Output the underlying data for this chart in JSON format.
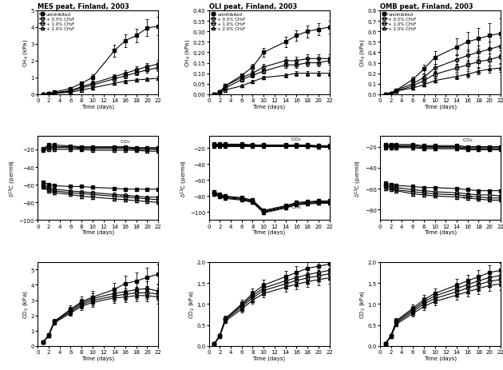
{
  "titles": [
    "MES peat, Finland, 2003",
    "OLI peat, Finland, 2003",
    "OMB peat, Finland, 2003"
  ],
  "time": [
    1,
    2,
    3,
    6,
    8,
    10,
    14,
    16,
    18,
    20,
    22
  ],
  "legend_labels": [
    "uninhibited",
    "+ 0.5% CH₃F",
    "+ 1.0% CH₃F",
    "+ 2.0% CH₃F"
  ],
  "ch4_MES": {
    "uninhibited": [
      0.0,
      0.05,
      0.12,
      0.35,
      0.65,
      1.0,
      2.6,
      3.2,
      3.5,
      3.95,
      4.05
    ],
    "p05": [
      0.0,
      0.04,
      0.08,
      0.22,
      0.45,
      0.65,
      1.05,
      1.25,
      1.45,
      1.65,
      1.8
    ],
    "p10": [
      0.0,
      0.03,
      0.07,
      0.18,
      0.38,
      0.55,
      0.92,
      1.1,
      1.28,
      1.45,
      1.58
    ],
    "p20": [
      0.0,
      0.02,
      0.05,
      0.12,
      0.25,
      0.38,
      0.65,
      0.78,
      0.85,
      0.9,
      0.95
    ],
    "uninhibited_err": [
      0.0,
      0.02,
      0.03,
      0.06,
      0.12,
      0.18,
      0.35,
      0.38,
      0.42,
      0.5,
      0.55
    ],
    "p05_err": [
      0.0,
      0.01,
      0.02,
      0.04,
      0.07,
      0.09,
      0.14,
      0.17,
      0.19,
      0.22,
      0.24
    ],
    "p10_err": [
      0.0,
      0.01,
      0.015,
      0.03,
      0.06,
      0.08,
      0.12,
      0.14,
      0.16,
      0.18,
      0.2
    ],
    "p20_err": [
      0.0,
      0.01,
      0.01,
      0.02,
      0.04,
      0.05,
      0.08,
      0.09,
      0.1,
      0.11,
      0.12
    ],
    "ylim": [
      0,
      5
    ],
    "yticks": [
      0,
      1,
      2,
      3,
      4,
      5
    ]
  },
  "ch4_OLI": {
    "uninhibited": [
      0.0,
      0.01,
      0.04,
      0.09,
      0.13,
      0.2,
      0.25,
      0.28,
      0.3,
      0.31,
      0.32
    ],
    "p05": [
      0.0,
      0.01,
      0.04,
      0.08,
      0.1,
      0.13,
      0.16,
      0.16,
      0.17,
      0.17,
      0.17
    ],
    "p10": [
      0.0,
      0.01,
      0.03,
      0.07,
      0.09,
      0.11,
      0.14,
      0.14,
      0.15,
      0.15,
      0.16
    ],
    "p20": [
      0.0,
      0.01,
      0.02,
      0.04,
      0.06,
      0.08,
      0.09,
      0.1,
      0.1,
      0.1,
      0.1
    ],
    "uninhibited_err": [
      0.0,
      0.003,
      0.005,
      0.01,
      0.015,
      0.02,
      0.025,
      0.025,
      0.028,
      0.03,
      0.03
    ],
    "p05_err": [
      0.0,
      0.003,
      0.005,
      0.009,
      0.012,
      0.015,
      0.018,
      0.019,
      0.02,
      0.021,
      0.022
    ],
    "p10_err": [
      0.0,
      0.002,
      0.004,
      0.007,
      0.01,
      0.012,
      0.015,
      0.016,
      0.017,
      0.018,
      0.019
    ],
    "p20_err": [
      0.0,
      0.002,
      0.003,
      0.005,
      0.007,
      0.009,
      0.01,
      0.011,
      0.012,
      0.012,
      0.013
    ],
    "ylim": [
      0,
      0.4
    ],
    "yticks": [
      0.0,
      0.05,
      0.1,
      0.15,
      0.2,
      0.25,
      0.3,
      0.35,
      0.4
    ]
  },
  "ch4_OMB": {
    "uninhibited": [
      0.0,
      0.01,
      0.04,
      0.14,
      0.24,
      0.35,
      0.45,
      0.5,
      0.53,
      0.56,
      0.58
    ],
    "p05": [
      0.0,
      0.01,
      0.04,
      0.1,
      0.16,
      0.25,
      0.33,
      0.37,
      0.4,
      0.43,
      0.46
    ],
    "p10": [
      0.0,
      0.01,
      0.03,
      0.08,
      0.13,
      0.19,
      0.25,
      0.28,
      0.31,
      0.33,
      0.36
    ],
    "p20": [
      0.0,
      0.01,
      0.03,
      0.06,
      0.09,
      0.13,
      0.17,
      0.19,
      0.22,
      0.24,
      0.25
    ],
    "uninhibited_err": [
      0.0,
      0.005,
      0.01,
      0.025,
      0.04,
      0.06,
      0.08,
      0.09,
      0.1,
      0.12,
      0.14
    ],
    "p05_err": [
      0.0,
      0.004,
      0.008,
      0.018,
      0.028,
      0.04,
      0.05,
      0.058,
      0.065,
      0.07,
      0.08
    ],
    "p10_err": [
      0.0,
      0.003,
      0.006,
      0.013,
      0.02,
      0.03,
      0.038,
      0.044,
      0.05,
      0.055,
      0.06
    ],
    "p20_err": [
      0.0,
      0.003,
      0.005,
      0.009,
      0.014,
      0.02,
      0.026,
      0.03,
      0.034,
      0.037,
      0.04
    ],
    "ylim": [
      0,
      0.8
    ],
    "yticks": [
      0.0,
      0.1,
      0.2,
      0.3,
      0.4,
      0.5,
      0.6,
      0.7,
      0.8
    ]
  },
  "d13c_MES": {
    "CO2_uninhibited": [
      -19,
      -15,
      -15,
      -16,
      -17,
      -17,
      -17,
      -17,
      -18,
      -18,
      -18
    ],
    "CO2_p05": [
      -20,
      -17,
      -17,
      -17,
      -18,
      -18,
      -18,
      -18,
      -19,
      -19,
      -19
    ],
    "CO2_p10": [
      -20,
      -18,
      -18,
      -18,
      -19,
      -19,
      -19,
      -19,
      -20,
      -20,
      -20
    ],
    "CO2_p20": [
      -21,
      -20,
      -20,
      -20,
      -20,
      -21,
      -21,
      -21,
      -21,
      -22,
      -22
    ],
    "CH4_uninhibited": [
      -57,
      -60,
      -61,
      -62,
      -62,
      -63,
      -64,
      -65,
      -65,
      -65,
      -65
    ],
    "CH4_p05": [
      -60,
      -63,
      -65,
      -67,
      -68,
      -69,
      -71,
      -72,
      -73,
      -74,
      -74
    ],
    "CH4_p10": [
      -62,
      -65,
      -67,
      -69,
      -70,
      -71,
      -73,
      -74,
      -75,
      -76,
      -77
    ],
    "CH4_p20": [
      -63,
      -67,
      -69,
      -71,
      -73,
      -74,
      -76,
      -77,
      -78,
      -79,
      -80
    ],
    "ylim": [
      -100,
      -5
    ],
    "yticks": [
      -100,
      -80,
      -60,
      -40,
      -20
    ]
  },
  "d13c_OLI": {
    "CO2_uninhibited": [
      -15,
      -15,
      -15,
      -15,
      -16,
      -16,
      -16,
      -16,
      -16,
      -17,
      -17
    ],
    "CO2_p05": [
      -16,
      -16,
      -16,
      -16,
      -16,
      -17,
      -17,
      -17,
      -17,
      -17,
      -17
    ],
    "CO2_p10": [
      -17,
      -17,
      -17,
      -17,
      -17,
      -17,
      -17,
      -17,
      -18,
      -18,
      -18
    ],
    "CO2_p20": [
      -18,
      -18,
      -18,
      -18,
      -18,
      -18,
      -18,
      -18,
      -18,
      -19,
      -19
    ],
    "CH4_uninhibited": [
      -75,
      -78,
      -80,
      -82,
      -85,
      -98,
      -92,
      -88,
      -87,
      -86,
      -86
    ],
    "CH4_p05": [
      -76,
      -79,
      -81,
      -83,
      -86,
      -99,
      -93,
      -89,
      -88,
      -87,
      -87
    ],
    "CH4_p10": [
      -77,
      -80,
      -82,
      -84,
      -87,
      -100,
      -94,
      -90,
      -89,
      -88,
      -88
    ],
    "CH4_p20": [
      -78,
      -81,
      -83,
      -85,
      -88,
      -101,
      -95,
      -91,
      -90,
      -89,
      -89
    ],
    "ylim": [
      -110,
      -5
    ],
    "yticks": [
      -100,
      -80,
      -60,
      -40,
      -20
    ]
  },
  "d13c_OMB": {
    "CO2_uninhibited": [
      -18,
      -18,
      -18,
      -18,
      -19,
      -19,
      -19,
      -20,
      -20,
      -20,
      -20
    ],
    "CO2_p05": [
      -19,
      -19,
      -19,
      -19,
      -20,
      -20,
      -20,
      -21,
      -21,
      -21,
      -21
    ],
    "CO2_p10": [
      -20,
      -20,
      -20,
      -20,
      -21,
      -21,
      -21,
      -22,
      -22,
      -22,
      -22
    ],
    "CO2_p20": [
      -21,
      -21,
      -21,
      -21,
      -22,
      -22,
      -22,
      -23,
      -23,
      -23,
      -23
    ],
    "CH4_uninhibited": [
      -55,
      -56,
      -57,
      -58,
      -59,
      -59,
      -60,
      -61,
      -62,
      -62,
      -62
    ],
    "CH4_p05": [
      -57,
      -58,
      -59,
      -61,
      -62,
      -63,
      -64,
      -65,
      -66,
      -66,
      -67
    ],
    "CH4_p10": [
      -58,
      -59,
      -61,
      -63,
      -64,
      -65,
      -66,
      -67,
      -68,
      -69,
      -69
    ],
    "CH4_p20": [
      -60,
      -61,
      -62,
      -65,
      -66,
      -67,
      -68,
      -69,
      -70,
      -71,
      -71
    ],
    "ylim": [
      -90,
      -10
    ],
    "yticks": [
      -80,
      -60,
      -40,
      -20
    ]
  },
  "co2_MES": {
    "uninhibited": [
      0.25,
      0.7,
      1.6,
      2.4,
      2.9,
      3.2,
      3.7,
      4.1,
      4.25,
      4.5,
      4.7
    ],
    "p05": [
      0.25,
      0.7,
      1.6,
      2.35,
      2.8,
      3.1,
      3.45,
      3.55,
      3.7,
      3.75,
      3.6
    ],
    "p10": [
      0.25,
      0.68,
      1.55,
      2.25,
      2.7,
      2.98,
      3.28,
      3.38,
      3.48,
      3.48,
      3.4
    ],
    "p20": [
      0.25,
      0.65,
      1.5,
      2.15,
      2.6,
      2.85,
      3.15,
      3.2,
      3.3,
      3.3,
      3.2
    ],
    "uninhibited_err": [
      0.02,
      0.08,
      0.15,
      0.25,
      0.35,
      0.4,
      0.45,
      0.5,
      0.55,
      0.6,
      0.65
    ],
    "p05_err": [
      0.02,
      0.07,
      0.13,
      0.22,
      0.3,
      0.35,
      0.38,
      0.42,
      0.45,
      0.48,
      0.5
    ],
    "p10_err": [
      0.02,
      0.06,
      0.12,
      0.2,
      0.27,
      0.32,
      0.35,
      0.38,
      0.4,
      0.42,
      0.44
    ],
    "p20_err": [
      0.02,
      0.06,
      0.11,
      0.18,
      0.24,
      0.29,
      0.32,
      0.35,
      0.37,
      0.39,
      0.41
    ],
    "ylim": [
      0,
      5.5
    ],
    "yticks": [
      0,
      1,
      2,
      3,
      4,
      5
    ]
  },
  "co2_OLI": {
    "uninhibited": [
      0.05,
      0.25,
      0.65,
      1.0,
      1.25,
      1.45,
      1.65,
      1.75,
      1.85,
      1.9,
      1.95
    ],
    "p05": [
      0.05,
      0.25,
      0.65,
      0.97,
      1.2,
      1.38,
      1.55,
      1.63,
      1.7,
      1.75,
      1.8
    ],
    "p10": [
      0.05,
      0.24,
      0.62,
      0.93,
      1.15,
      1.32,
      1.48,
      1.56,
      1.62,
      1.67,
      1.72
    ],
    "p20": [
      0.05,
      0.23,
      0.59,
      0.88,
      1.09,
      1.25,
      1.4,
      1.47,
      1.53,
      1.58,
      1.62
    ],
    "uninhibited_err": [
      0.01,
      0.03,
      0.07,
      0.1,
      0.12,
      0.13,
      0.14,
      0.15,
      0.15,
      0.16,
      0.16
    ],
    "p05_err": [
      0.01,
      0.03,
      0.06,
      0.09,
      0.11,
      0.12,
      0.13,
      0.13,
      0.14,
      0.14,
      0.15
    ],
    "p10_err": [
      0.01,
      0.02,
      0.06,
      0.08,
      0.1,
      0.11,
      0.12,
      0.12,
      0.13,
      0.13,
      0.14
    ],
    "p20_err": [
      0.01,
      0.02,
      0.05,
      0.08,
      0.09,
      0.1,
      0.11,
      0.12,
      0.12,
      0.13,
      0.13
    ],
    "ylim": [
      0,
      2.0
    ],
    "yticks": [
      0.0,
      0.5,
      1.0,
      1.5,
      2.0
    ]
  },
  "co2_OMB": {
    "uninhibited": [
      0.05,
      0.25,
      0.6,
      0.9,
      1.1,
      1.25,
      1.45,
      1.55,
      1.65,
      1.75,
      1.8
    ],
    "p05": [
      0.05,
      0.24,
      0.58,
      0.86,
      1.05,
      1.19,
      1.37,
      1.46,
      1.55,
      1.63,
      1.68
    ],
    "p10": [
      0.05,
      0.23,
      0.55,
      0.82,
      1.0,
      1.13,
      1.29,
      1.38,
      1.46,
      1.54,
      1.58
    ],
    "p20": [
      0.05,
      0.22,
      0.52,
      0.77,
      0.94,
      1.06,
      1.21,
      1.29,
      1.37,
      1.44,
      1.48
    ],
    "uninhibited_err": [
      0.01,
      0.03,
      0.06,
      0.09,
      0.11,
      0.12,
      0.14,
      0.15,
      0.16,
      0.17,
      0.17
    ],
    "p05_err": [
      0.01,
      0.03,
      0.055,
      0.085,
      0.1,
      0.11,
      0.13,
      0.14,
      0.14,
      0.15,
      0.16
    ],
    "p10_err": [
      0.01,
      0.025,
      0.05,
      0.078,
      0.095,
      0.105,
      0.12,
      0.13,
      0.14,
      0.14,
      0.15
    ],
    "p20_err": [
      0.01,
      0.022,
      0.045,
      0.072,
      0.088,
      0.098,
      0.11,
      0.12,
      0.13,
      0.13,
      0.14
    ],
    "ylim": [
      0,
      2.0
    ],
    "yticks": [
      0.0,
      0.5,
      1.0,
      1.5,
      2.0
    ]
  },
  "markers_series": [
    "s",
    "o",
    "s",
    "^"
  ],
  "fillstyles": [
    "full",
    "none",
    "none",
    "none"
  ],
  "markersize": 3,
  "linewidth": 0.8
}
